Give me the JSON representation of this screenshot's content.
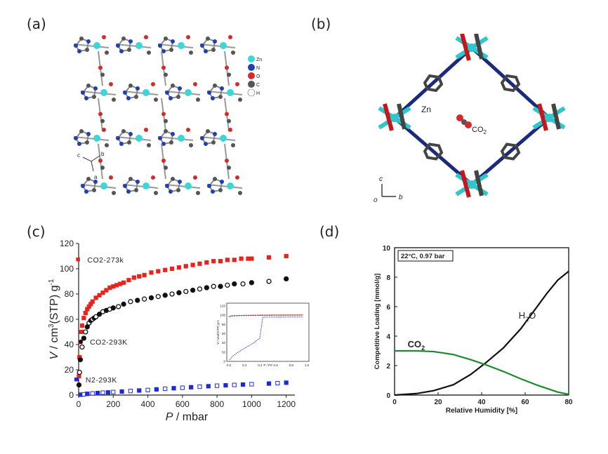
{
  "panels": {
    "a": {
      "label": "(a)",
      "legend": [
        {
          "symbol": "Zn",
          "color": "#3dd6d6"
        },
        {
          "symbol": "N",
          "color": "#1f3fb3"
        },
        {
          "symbol": "O",
          "color": "#d62a2a"
        },
        {
          "symbol": "C",
          "color": "#555555"
        },
        {
          "symbol": "H",
          "color": "#ffffff"
        }
      ],
      "axes": {
        "c": "c",
        "b": "b",
        "a": "a"
      }
    },
    "b": {
      "label": "(b)",
      "atom_label": "Zn",
      "guest_label": "CO",
      "guest_subscript": "2",
      "axes": {
        "c": "c",
        "b": "b",
        "o": "o"
      }
    },
    "c": {
      "label": "(c)"
    },
    "d": {
      "label": "(d)"
    }
  },
  "chart_data": [
    {
      "id": "c",
      "type": "scatter",
      "xlabel": "P / mbar",
      "ylabel": "V / cm3(STP) g-1",
      "xlim": [
        0,
        1250
      ],
      "ylim": [
        0,
        120
      ],
      "xticks": [
        0,
        200,
        400,
        600,
        800,
        1000,
        1200
      ],
      "yticks": [
        0,
        20,
        40,
        60,
        80,
        100,
        120
      ],
      "series": [
        {
          "name": "CO2-273k",
          "color": "#e8231c",
          "marker": "square",
          "x": [
            2,
            5,
            10,
            15,
            20,
            30,
            40,
            50,
            60,
            70,
            80,
            100,
            120,
            140,
            160,
            180,
            200,
            220,
            240,
            260,
            290,
            320,
            350,
            380,
            420,
            460,
            500,
            540,
            580,
            620,
            660,
            700,
            740,
            780,
            820,
            860,
            900,
            940,
            980,
            1000,
            1100,
            1200
          ],
          "y": [
            15,
            30,
            42,
            50,
            55,
            61,
            65,
            68,
            70,
            72,
            74,
            77,
            79,
            81,
            83,
            85,
            86,
            87,
            88,
            89,
            91,
            93,
            94,
            95,
            97,
            98,
            99,
            100,
            101,
            102,
            103,
            104,
            105,
            106,
            106,
            107,
            107,
            108,
            108,
            108,
            109,
            110
          ]
        },
        {
          "name": "CO2-293K",
          "color": "#111111",
          "marker": "circle",
          "x": [
            2,
            5,
            10,
            20,
            30,
            40,
            50,
            60,
            70,
            80,
            90,
            100,
            120,
            140,
            160,
            180,
            200,
            230,
            260,
            300,
            340,
            380,
            420,
            460,
            500,
            540,
            580,
            620,
            660,
            700,
            740,
            780,
            820,
            860,
            900,
            950,
            1000,
            1100,
            1200
          ],
          "y": [
            8,
            18,
            28,
            38,
            45,
            50,
            54,
            57,
            59,
            60,
            61,
            62,
            64,
            66,
            67,
            68,
            69,
            70,
            72,
            74,
            75,
            76,
            77,
            78,
            79,
            80,
            81,
            82,
            83,
            84,
            85,
            86,
            86,
            87,
            88,
            88,
            89,
            90,
            92
          ]
        },
        {
          "name": "N2-293K",
          "color": "#1c2bd6",
          "marker": "square",
          "x": [
            10,
            30,
            50,
            80,
            110,
            140,
            170,
            200,
            250,
            300,
            350,
            400,
            450,
            500,
            550,
            600,
            650,
            700,
            750,
            800,
            850,
            900,
            950,
            1000,
            1100,
            1150,
            1200
          ],
          "y": [
            0.3,
            0.6,
            1,
            1.3,
            1.6,
            1.9,
            2.1,
            2.4,
            2.8,
            3.2,
            3.6,
            4,
            4.5,
            5,
            5.4,
            5.8,
            6.2,
            6.6,
            7,
            7.4,
            7.7,
            8,
            8.3,
            8.6,
            9.1,
            9.4,
            9.8
          ]
        }
      ],
      "inset": {
        "xlim": [
          0,
          1.0
        ],
        "ylim": [
          0,
          120
        ],
        "xticks": [
          0.0,
          0.2,
          0.4,
          0.6,
          0.8,
          1.0
        ],
        "yticks": [
          0,
          20,
          40,
          60,
          80,
          100,
          120
        ],
        "ylabel": "V / cm3(STP) g-1",
        "xlabel": "P / P0"
      }
    },
    {
      "id": "d",
      "type": "line",
      "annotation": "22°C, 0.97 bar",
      "xlabel": "Relative Humidity [%]",
      "ylabel": "Competitive Loading [mmol/g]",
      "xlim": [
        0,
        80
      ],
      "ylim": [
        0,
        10
      ],
      "xticks": [
        0,
        20,
        40,
        60,
        80
      ],
      "yticks": [
        0,
        2,
        4,
        6,
        8,
        10
      ],
      "series": [
        {
          "name": "H2O",
          "label": "H",
          "label_sub": "2",
          "label_tail": "O",
          "color": "#111111",
          "x": [
            0,
            10,
            18,
            27,
            35,
            42,
            50,
            58,
            65,
            70,
            75,
            80
          ],
          "y": [
            0,
            0.1,
            0.3,
            0.7,
            1.4,
            2.2,
            3.2,
            4.5,
            5.9,
            6.9,
            7.8,
            8.4
          ]
        },
        {
          "name": "CO2",
          "label": "CO",
          "label_sub": "2",
          "label_tail": "",
          "color": "#1e8a2e",
          "x": [
            0,
            10,
            18,
            27,
            35,
            42,
            50,
            58,
            65,
            70,
            75,
            80
          ],
          "y": [
            3.0,
            3.0,
            2.95,
            2.75,
            2.4,
            2.05,
            1.6,
            1.1,
            0.7,
            0.45,
            0.2,
            0.05
          ]
        }
      ]
    }
  ]
}
